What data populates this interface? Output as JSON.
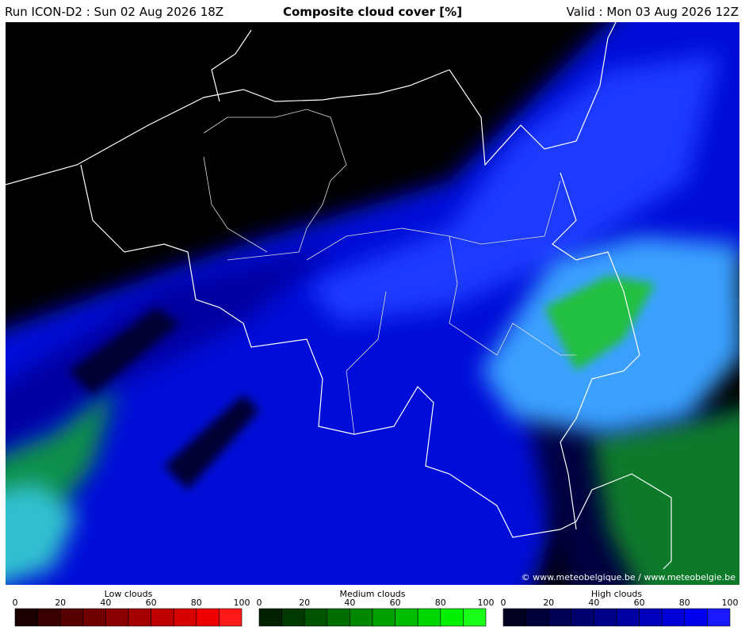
{
  "header": {
    "run": "Run ICON-D2 : Sun 02 Aug 2026 18Z",
    "title": "Composite cloud cover [%]",
    "valid": "Valid : Mon 03 Aug 2026 12Z"
  },
  "credit": "© www.meteobelgique.be / www.meteobelgie.be",
  "legends": [
    {
      "title": "Low clouds",
      "ticks": [
        0,
        20,
        40,
        60,
        80,
        100
      ],
      "colors": [
        "#1a0000",
        "#3a0000",
        "#560000",
        "#700000",
        "#8a0000",
        "#a40000",
        "#be0000",
        "#d60000",
        "#ee0000",
        "#ff1a1a"
      ]
    },
    {
      "title": "Medium clouds",
      "ticks": [
        0,
        20,
        40,
        60,
        80,
        100
      ],
      "colors": [
        "#002000",
        "#003a00",
        "#005400",
        "#006e00",
        "#008800",
        "#00a200",
        "#00bc00",
        "#00d600",
        "#00f000",
        "#19ff19"
      ]
    },
    {
      "title": "High clouds",
      "ticks": [
        0,
        20,
        40,
        60,
        80,
        100
      ],
      "colors": [
        "#000020",
        "#00003a",
        "#000054",
        "#00006e",
        "#000088",
        "#0000a2",
        "#0000bc",
        "#0000d6",
        "#0000f0",
        "#1919ff"
      ]
    }
  ]
}
